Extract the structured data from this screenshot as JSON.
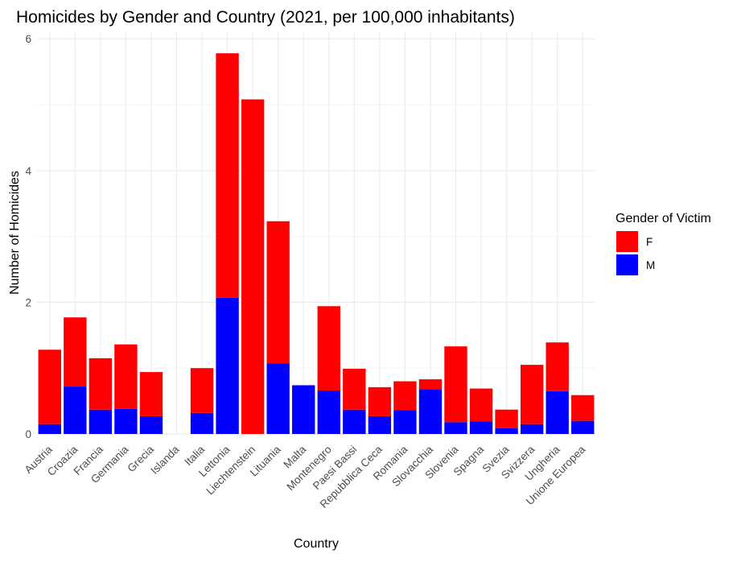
{
  "colors": {
    "F": "#FF0000",
    "M": "#0000FF"
  },
  "chart_data": {
    "type": "bar",
    "stacked": true,
    "title": "Homicides by Gender and Country (2021, per 100,000 inhabitants)",
    "xlabel": "Country",
    "ylabel": "Number of Homicides",
    "ylim": [
      0,
      6.1
    ],
    "y_ticks": [
      0,
      2,
      4,
      6
    ],
    "grid": true,
    "legend": {
      "title": "Gender of Victim",
      "position": "right",
      "entries": [
        "F",
        "M"
      ]
    },
    "categories": [
      "Austria",
      "Croazia",
      "Francia",
      "Germania",
      "Grecia",
      "Islanda",
      "Italia",
      "Lettonia",
      "Liechtenstein",
      "Lituania",
      "Malta",
      "Montenegro",
      "Paesi Bassi",
      "Repubblica Ceca",
      "Romania",
      "Slovacchia",
      "Slovenia",
      "Spagna",
      "Svezia",
      "Svizzera",
      "Ungheria",
      "Unione Europea"
    ],
    "series": [
      {
        "name": "M",
        "values": [
          0.15,
          0.72,
          0.37,
          0.38,
          0.27,
          0,
          0.32,
          2.07,
          0,
          1.07,
          0.74,
          0.66,
          0.37,
          0.27,
          0.36,
          0.68,
          0.18,
          0.19,
          0.09,
          0.15,
          0.65,
          0.2
        ]
      },
      {
        "name": "F",
        "values": [
          1.13,
          1.05,
          0.78,
          0.98,
          0.67,
          0,
          0.68,
          3.71,
          5.08,
          2.16,
          0,
          1.28,
          0.62,
          0.44,
          0.44,
          0.15,
          1.15,
          0.5,
          0.28,
          0.9,
          0.74,
          0.39
        ]
      }
    ]
  }
}
